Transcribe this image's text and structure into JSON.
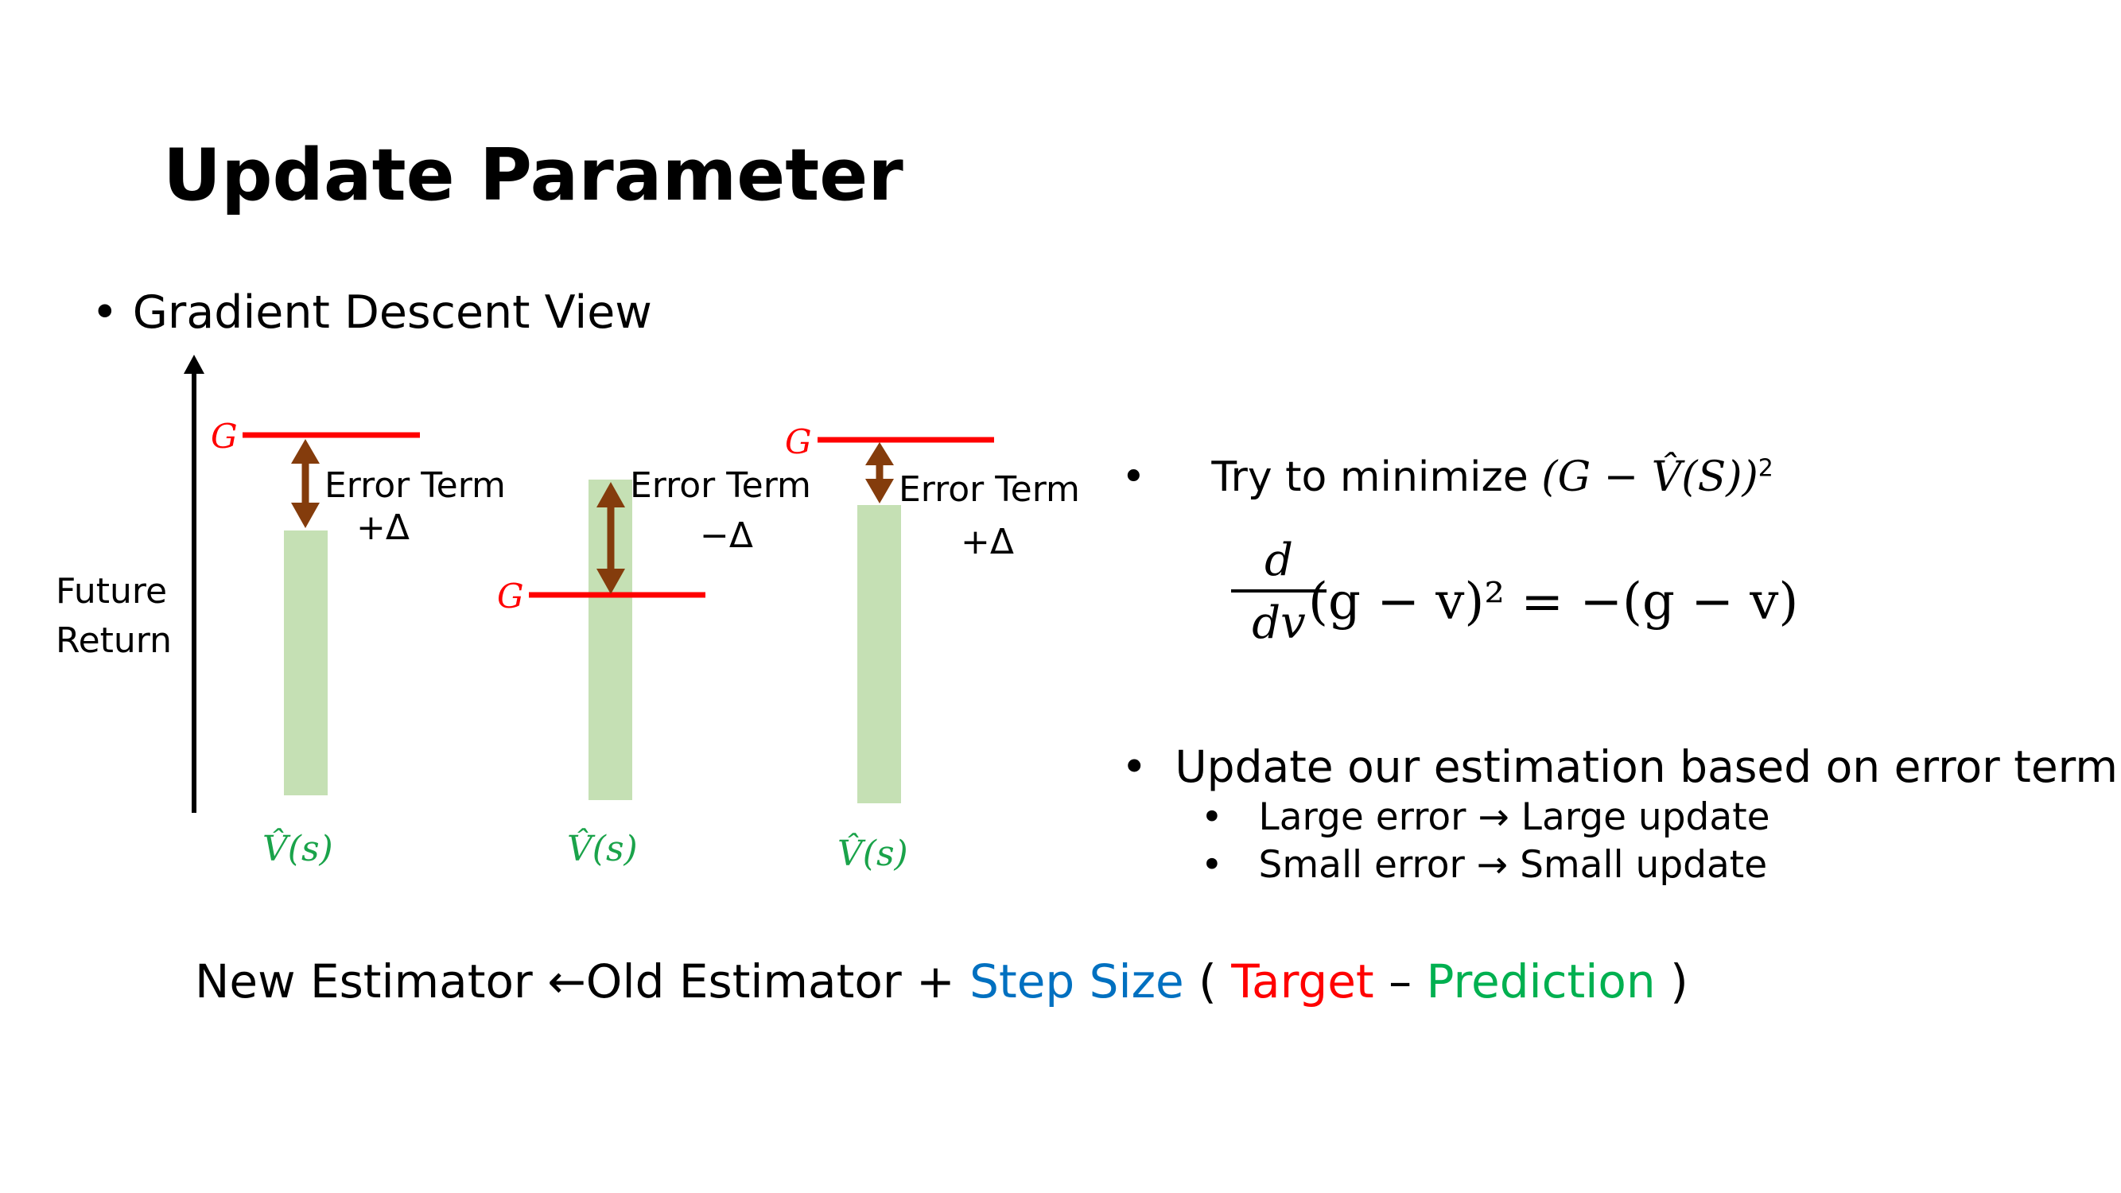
{
  "title": "Update Parameter",
  "bullet_main": "Gradient Descent View",
  "diagram": {
    "axis_label_line1": "Future",
    "axis_label_line2": "Return",
    "target_symbol": "G",
    "prediction_symbol": "V̂(s)",
    "panels": [
      {
        "error_label": "Error Term",
        "delta": "+Δ"
      },
      {
        "error_label": "Error Term",
        "delta": "−Δ"
      },
      {
        "error_label": "Error Term",
        "delta": "+Δ"
      }
    ],
    "colors": {
      "target": "#ff0000",
      "bar": "#c5e0b4",
      "arrow": "#843c0c",
      "prediction": "#1aa34a"
    }
  },
  "right": {
    "bullet1_text": "Try to minimize",
    "bullet1_expr": "(G − V̂(S))",
    "bullet1_exp": "2",
    "derivative_num": "d",
    "derivative_den": "dv",
    "derivative_rest": "(g − v)² = −(g − v)",
    "bullet2": "Update our estimation based on error term",
    "sub1": "Large error → Large update",
    "sub2": "Small error → Small update"
  },
  "bottom": {
    "part1": "New Estimator ←Old Estimator + ",
    "step": "Step Size",
    "open": " ( ",
    "target": "Target",
    "dash": " – ",
    "prediction": "Prediction",
    "close": " )"
  }
}
